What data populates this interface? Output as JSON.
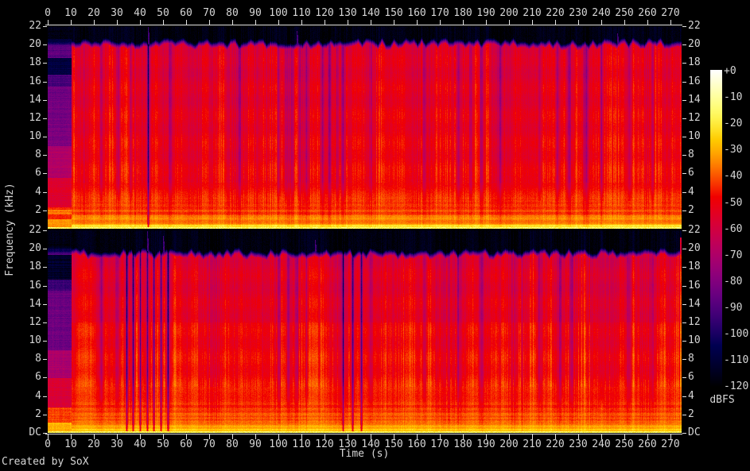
{
  "credit": "Created by SoX",
  "axes": {
    "time_label": "Time (s)",
    "freq_label": "Frequency (kHz)",
    "db_unit_label": "dBFS",
    "time_ticks": [
      0,
      10,
      20,
      30,
      40,
      50,
      60,
      70,
      80,
      90,
      100,
      110,
      120,
      130,
      140,
      150,
      160,
      170,
      180,
      190,
      200,
      210,
      220,
      230,
      240,
      250,
      260,
      270
    ],
    "freq_ticks_khz": [
      22,
      20,
      18,
      16,
      14,
      12,
      10,
      8,
      6,
      4,
      2
    ],
    "dc_label": "DC",
    "db_ticks": [
      "+0",
      "-10",
      "-20",
      "-30",
      "-40",
      "-50",
      "-60",
      "-70",
      "-80",
      "-90",
      "-100",
      "-110",
      "-120"
    ]
  },
  "chart_data": {
    "type": "heatmap",
    "subtype": "stereo-audio-spectrogram",
    "generator": "SoX spectrogram",
    "x_axis": {
      "label": "Time (s)",
      "range_s": [
        0,
        275
      ],
      "tick_step_s": 10
    },
    "y_axis": {
      "label": "Frequency (kHz)",
      "range_khz": [
        0,
        22
      ],
      "tick_step_khz": 2,
      "dc_row": true
    },
    "color_axis": {
      "label": "dBFS",
      "range_db": [
        0,
        -120
      ],
      "tick_step_db": 10,
      "palette": "sox-default black-indigo-purple-red-orange-yellow-white",
      "legend_position": "right"
    },
    "channels": 2,
    "panels": [
      {
        "channel": "left",
        "position": "top",
        "seed": 11,
        "intro_profile": "A",
        "quiet_intro_end_s": 10.5,
        "noise_cap_khz": 20.45,
        "quiet_dips_s": [
          23,
          30.5,
          36,
          43.5,
          53,
          83,
          100,
          103,
          106,
          109,
          112,
          119,
          122,
          125,
          128,
          140,
          163,
          178,
          183,
          188,
          196,
          213,
          221,
          226,
          233,
          240,
          252,
          262
        ],
        "deep_dips_s": [
          43.5
        ],
        "blue_spikes_s": [
          43.5,
          108,
          247
        ],
        "edge_strip": false,
        "warm": 0
      },
      {
        "channel": "right",
        "position": "bottom",
        "seed": 77,
        "intro_profile": "B",
        "quiet_intro_end_s": 10.5,
        "noise_cap_khz": 19.8,
        "quiet_dips_s": [
          23,
          30,
          34,
          37,
          40,
          43,
          46,
          49,
          52,
          100,
          104,
          108,
          112,
          128,
          132,
          136,
          140,
          163,
          178,
          188,
          213,
          222,
          227,
          240,
          252,
          262
        ],
        "deep_dips_s": [
          34,
          37,
          40,
          43,
          46,
          49,
          52,
          128,
          132,
          136
        ],
        "blue_spikes_s": [
          43,
          50,
          116
        ],
        "edge_strip": true,
        "warm": 0.02
      }
    ]
  }
}
